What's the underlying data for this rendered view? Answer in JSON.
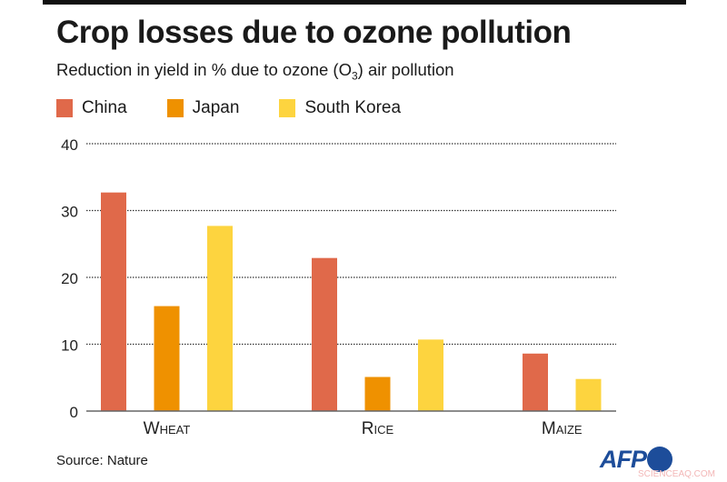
{
  "title": "Crop losses due to ozone pollution",
  "subtitle_pre": "Reduction in yield in % due to ozone (O",
  "subtitle_sub": "3",
  "subtitle_post": ") air pollution",
  "source": "Source: Nature",
  "logo": "AFP",
  "watermark": "SCIENCEAQ.COM",
  "chart_data": {
    "type": "bar",
    "title": "Crop losses due to ozone pollution",
    "ylabel": "Reduction in yield in %",
    "categories": [
      "Wheat",
      "Rice",
      "Maize"
    ],
    "ylim": [
      0,
      40
    ],
    "yticks": [
      "0",
      "10",
      "20",
      "30",
      "40"
    ],
    "grid": true,
    "legend": "top-left",
    "series": [
      {
        "name": "China",
        "color": "#e0694a",
        "values": [
          32.7,
          22.9,
          8.6
        ]
      },
      {
        "name": "Japan",
        "color": "#ef9100",
        "values": [
          15.7,
          5.1,
          null
        ]
      },
      {
        "name": "South Korea",
        "color": "#fdd43f",
        "values": [
          27.7,
          10.7,
          4.8
        ]
      }
    ]
  }
}
